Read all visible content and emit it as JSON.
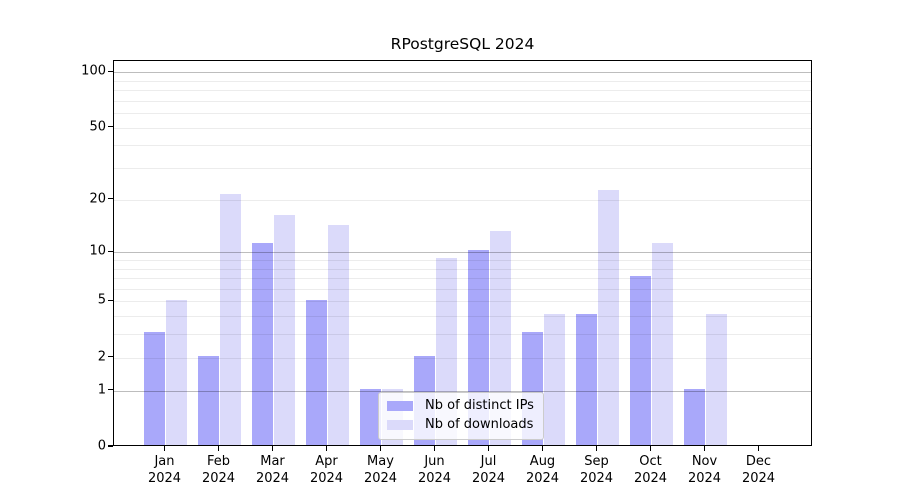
{
  "chart_data": {
    "type": "bar",
    "title": "RPostgreSQL 2024",
    "categories": [
      "Jan",
      "Feb",
      "Mar",
      "Apr",
      "May",
      "Jun",
      "Jul",
      "Aug",
      "Sep",
      "Oct",
      "Nov",
      "Dec"
    ],
    "year_label": "2024",
    "series": [
      {
        "name": "Nb of distinct IPs",
        "color": "#a9a8fa",
        "values": [
          3,
          2,
          11,
          5,
          1,
          2,
          10,
          3,
          4,
          7,
          1,
          0
        ]
      },
      {
        "name": "Nb of downloads",
        "color": "#dbdafa",
        "values": [
          5,
          21,
          16,
          14,
          1,
          9,
          13,
          4,
          22,
          11,
          4,
          0
        ]
      }
    ],
    "xlabel": "",
    "ylabel": "",
    "y_scale": "log10(1+x)",
    "ylim": [
      0,
      115
    ],
    "y_ticks": [
      0,
      1,
      2,
      5,
      10,
      20,
      50,
      100
    ],
    "y_major_gridlines": [
      1,
      10,
      100
    ],
    "y_minor_gridlines": [
      2,
      3,
      4,
      5,
      6,
      7,
      8,
      9,
      20,
      30,
      40,
      50,
      60,
      70,
      80,
      90
    ],
    "grid": "horizontal gridlines drawn over bars",
    "legend_position": "inside-bottom-center"
  }
}
